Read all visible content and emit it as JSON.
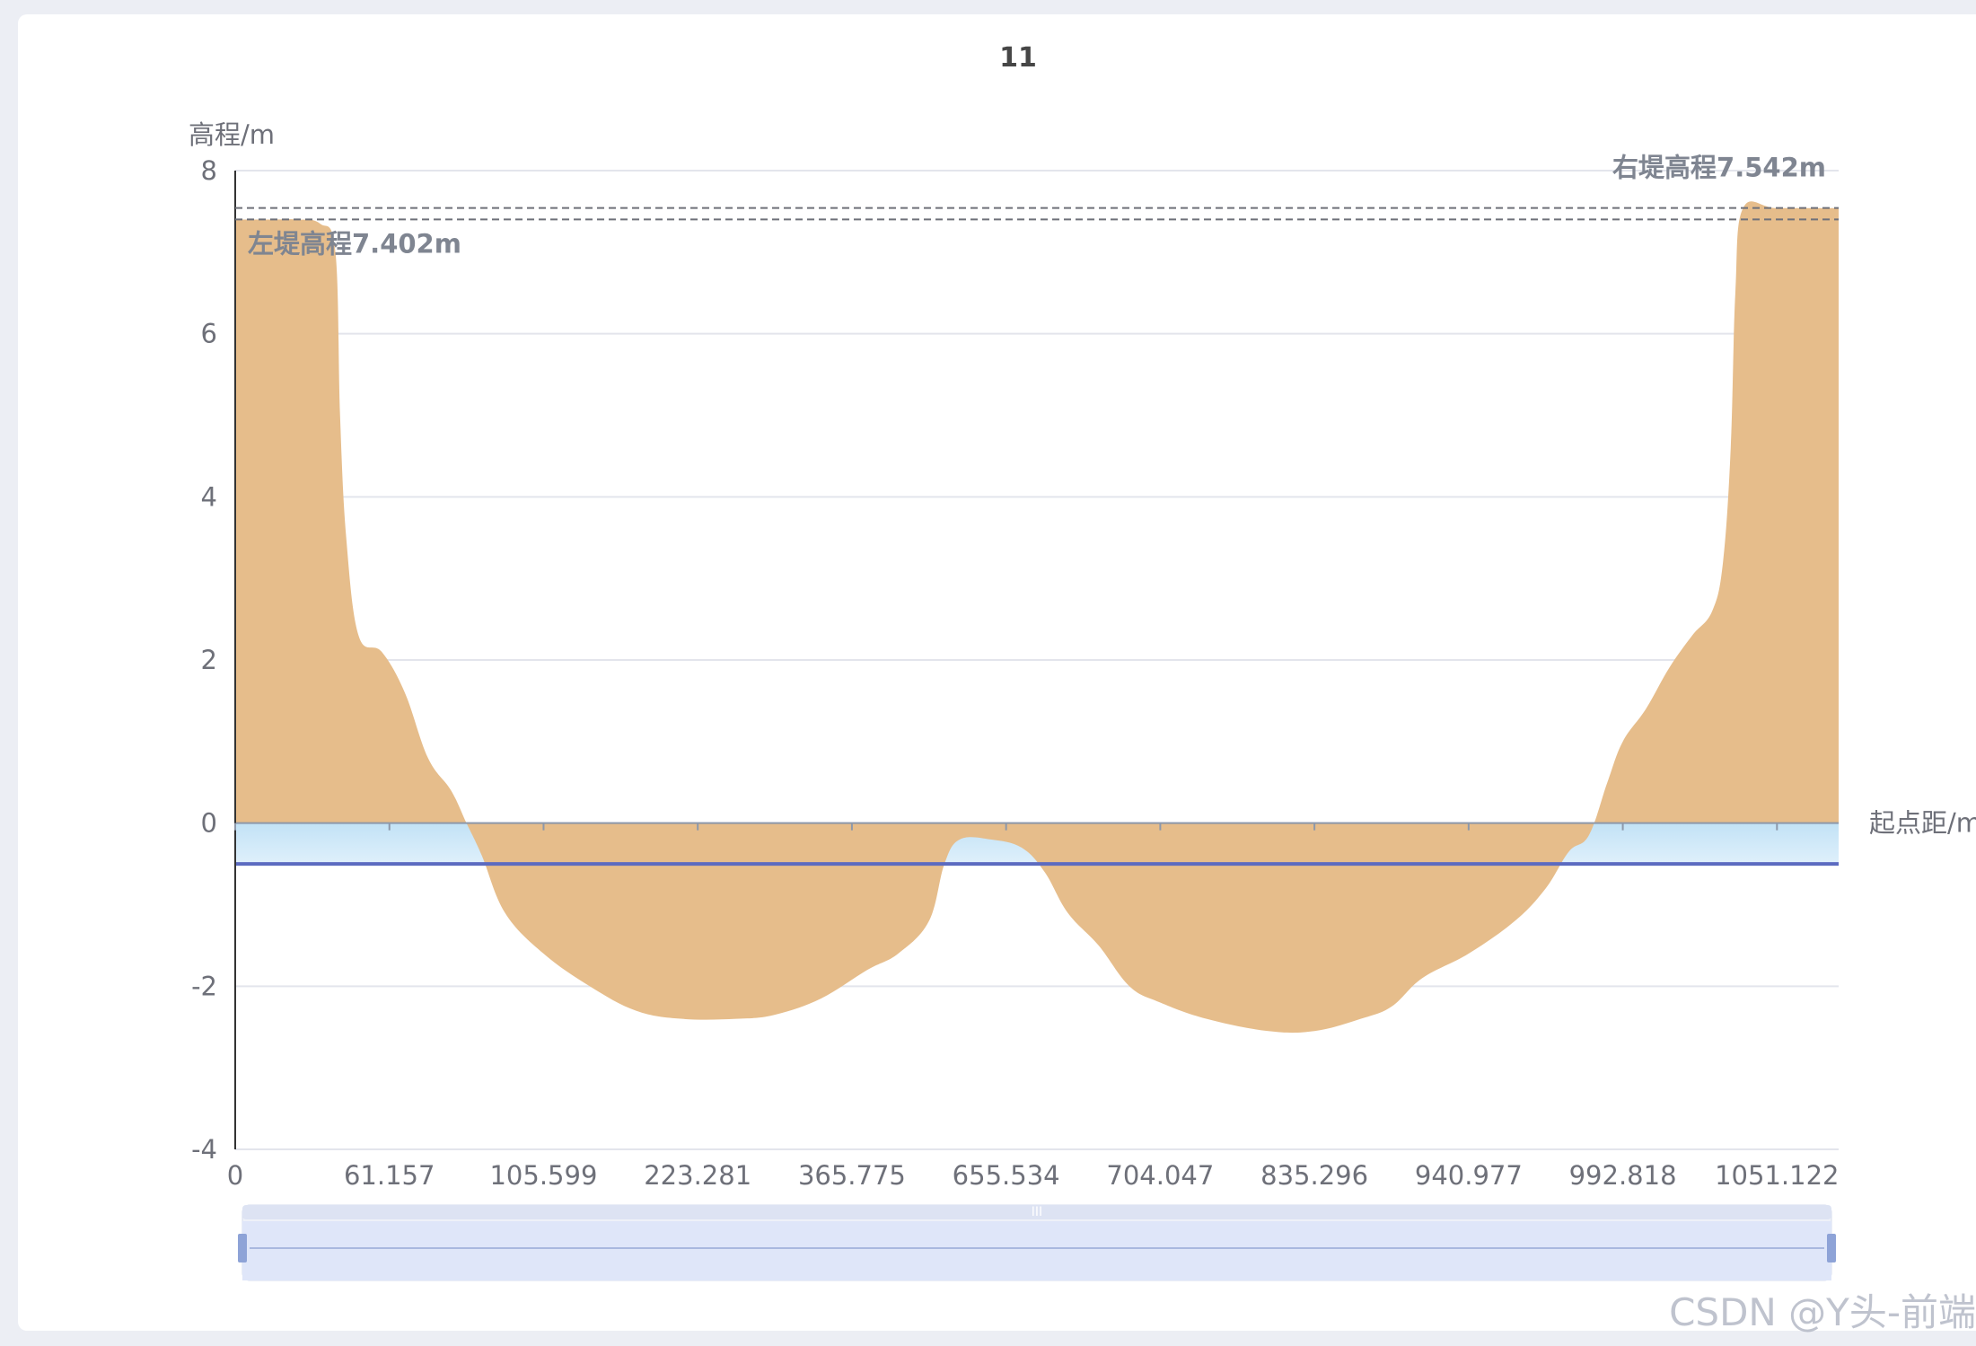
{
  "chart_data": {
    "type": "area",
    "title": "11",
    "ylabel": "高程/m",
    "xlabel": "起点距/m",
    "ylim": [
      -4,
      8
    ],
    "yticks": [
      -4,
      -2,
      0,
      2,
      4,
      6,
      8
    ],
    "x_tick_labels": [
      "0",
      "61.157",
      "105.599",
      "223.281",
      "365.775",
      "655.534",
      "704.047",
      "835.296",
      "940.977",
      "992.818",
      "1051.122"
    ],
    "grid": true,
    "water_level": -0.5,
    "markLines": [
      {
        "name": "左堤高程",
        "value": 7.402,
        "label": "左堤高程7.402m"
      },
      {
        "name": "右堤高程",
        "value": 7.542,
        "label": "右堤高程7.542m"
      }
    ],
    "profile": [
      {
        "x": 0.0,
        "y": 7.4
      },
      {
        "x": 0.25,
        "y": 7.4
      },
      {
        "x": 0.4,
        "y": 7.4
      },
      {
        "x": 0.55,
        "y": 7.35
      },
      {
        "x": 0.65,
        "y": 7.0
      },
      {
        "x": 0.68,
        "y": 5.0
      },
      {
        "x": 0.72,
        "y": 3.5
      },
      {
        "x": 0.8,
        "y": 2.3
      },
      {
        "x": 0.95,
        "y": 2.1
      },
      {
        "x": 1.1,
        "y": 1.6
      },
      {
        "x": 1.25,
        "y": 0.8
      },
      {
        "x": 1.4,
        "y": 0.4
      },
      {
        "x": 1.5,
        "y": 0.0
      },
      {
        "x": 1.6,
        "y": -0.4
      },
      {
        "x": 1.75,
        "y": -1.1
      },
      {
        "x": 2.0,
        "y": -1.6
      },
      {
        "x": 2.3,
        "y": -2.0
      },
      {
        "x": 2.6,
        "y": -2.3
      },
      {
        "x": 2.9,
        "y": -2.4
      },
      {
        "x": 3.25,
        "y": -2.4
      },
      {
        "x": 3.5,
        "y": -2.35
      },
      {
        "x": 3.8,
        "y": -2.15
      },
      {
        "x": 4.1,
        "y": -1.8
      },
      {
        "x": 4.3,
        "y": -1.6
      },
      {
        "x": 4.5,
        "y": -1.2
      },
      {
        "x": 4.6,
        "y": -0.5
      },
      {
        "x": 4.7,
        "y": -0.2
      },
      {
        "x": 4.9,
        "y": -0.2
      },
      {
        "x": 5.1,
        "y": -0.3
      },
      {
        "x": 5.25,
        "y": -0.6
      },
      {
        "x": 5.4,
        "y": -1.1
      },
      {
        "x": 5.6,
        "y": -1.5
      },
      {
        "x": 5.8,
        "y": -2.0
      },
      {
        "x": 6.0,
        "y": -2.2
      },
      {
        "x": 6.3,
        "y": -2.4
      },
      {
        "x": 6.7,
        "y": -2.55
      },
      {
        "x": 7.0,
        "y": -2.55
      },
      {
        "x": 7.3,
        "y": -2.4
      },
      {
        "x": 7.5,
        "y": -2.25
      },
      {
        "x": 7.7,
        "y": -1.9
      },
      {
        "x": 8.0,
        "y": -1.6
      },
      {
        "x": 8.3,
        "y": -1.2
      },
      {
        "x": 8.5,
        "y": -0.8
      },
      {
        "x": 8.65,
        "y": -0.35
      },
      {
        "x": 8.78,
        "y": -0.15
      },
      {
        "x": 8.9,
        "y": 0.5
      },
      {
        "x": 9.0,
        "y": 1.0
      },
      {
        "x": 9.15,
        "y": 1.4
      },
      {
        "x": 9.3,
        "y": 1.9
      },
      {
        "x": 9.45,
        "y": 2.3
      },
      {
        "x": 9.58,
        "y": 2.6
      },
      {
        "x": 9.65,
        "y": 3.2
      },
      {
        "x": 9.7,
        "y": 4.6
      },
      {
        "x": 9.73,
        "y": 6.5
      },
      {
        "x": 9.78,
        "y": 7.54
      },
      {
        "x": 10.0,
        "y": 7.54
      },
      {
        "x": 10.4,
        "y": 7.54
      }
    ]
  },
  "colors": {
    "terrain": "#e6bd8b",
    "water_top": "#c2e2f6",
    "water_bottom": "#dff0fb",
    "water_line": "#5c6bc0",
    "markline": "#6e7079",
    "grid": "#e3e5ec",
    "axis_text": "#6e7079",
    "title": "#464646",
    "zoom_fill": "#dfe6f9",
    "zoom_handle": "#8ea3d7"
  },
  "watermark": "CSDN @Y头-前端"
}
